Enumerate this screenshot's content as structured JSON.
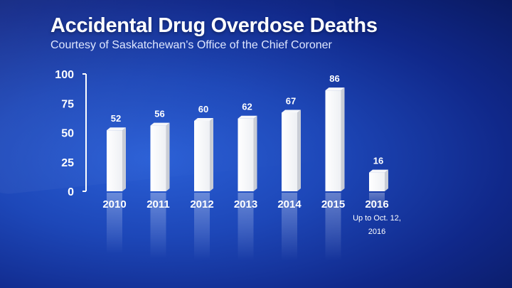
{
  "chart_data": {
    "type": "bar",
    "title": "Accidental Drug Overdose Deaths",
    "subtitle": "Courtesy of Saskatchewan's Office of the Chief Coroner",
    "categories": [
      "2010",
      "2011",
      "2012",
      "2013",
      "2014",
      "2015",
      "2016"
    ],
    "values": [
      52,
      56,
      60,
      62,
      67,
      86,
      16
    ],
    "data_labels": [
      "52",
      "56",
      "60",
      "62",
      "67",
      "86",
      "16"
    ],
    "yticks": [
      0,
      25,
      50,
      75,
      100
    ],
    "ylim": [
      0,
      100
    ],
    "xlabel": "",
    "ylabel": "",
    "grid": false,
    "annotations": [
      {
        "category": "2016",
        "lines": [
          "Up to Oct. 12,",
          "2016"
        ]
      }
    ],
    "colors": {
      "bar": "#ffffff",
      "bar_side": "#c9cdd6",
      "text": "#ffffff"
    }
  }
}
